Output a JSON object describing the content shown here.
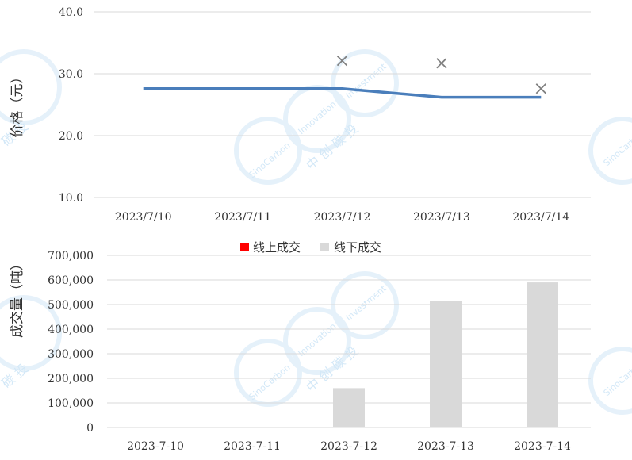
{
  "chart_data": [
    {
      "type": "line",
      "ylabel": "价格（元）",
      "ylim": [
        10,
        40
      ],
      "y_ticks": [
        "10.0",
        "20.0",
        "30.0",
        "40.0"
      ],
      "categories": [
        "2023/7/10",
        "2023/7/11",
        "2023/7/12",
        "2023/7/13",
        "2023/7/14"
      ],
      "series": [
        {
          "values": [
            27.6,
            27.6,
            27.6,
            26.2,
            26.2
          ],
          "color": "#4a7ebb"
        },
        {
          "marker": "x",
          "values": [
            null,
            null,
            32.1,
            31.7,
            27.6
          ],
          "color": "#7f7f7f"
        }
      ],
      "grid": true
    },
    {
      "type": "bar",
      "ylabel": "成交量（吨）",
      "ylim": [
        0,
        700000
      ],
      "y_ticks": [
        "0",
        "100,000",
        "200,000",
        "300,000",
        "400,000",
        "500,000",
        "600,000",
        "700,000"
      ],
      "categories": [
        "2023-7-10",
        "2023-7-11",
        "2023-7-12",
        "2023-7-13",
        "2023-7-14"
      ],
      "series": [
        {
          "name": "线上成交",
          "values": [
            0,
            0,
            0,
            0,
            0
          ],
          "color": "#ff0000"
        },
        {
          "name": "线下成交",
          "values": [
            0,
            0,
            160000,
            516000,
            590000
          ],
          "color": "#d9d9d9"
        }
      ],
      "legend": "top",
      "grid": true
    }
  ]
}
